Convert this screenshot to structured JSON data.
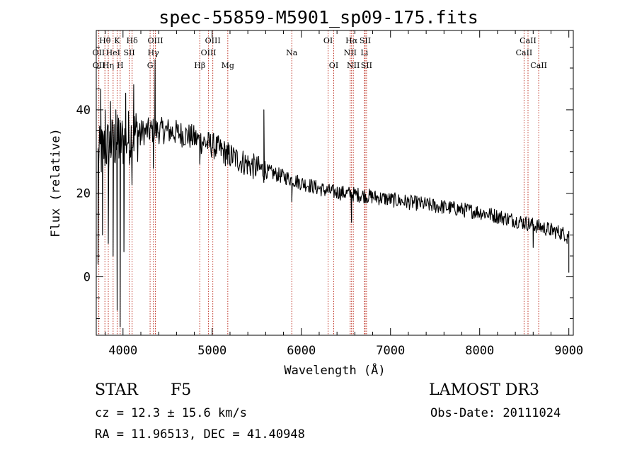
{
  "title": "spec-55859-M5901_sp09-175.fits",
  "info": {
    "object_type": "STAR",
    "subclass": "F5",
    "survey": "LAMOST DR3",
    "cz": "cz = 12.3 ± 15.6 km/s",
    "obs_date": "Obs-Date: 20111024",
    "ra_dec": "RA =  11.96513, DEC =  41.40948"
  },
  "colors": {
    "line_marker": "#c0392b",
    "spectrum": "#000000"
  },
  "chart_data": {
    "type": "line",
    "title": "spec-55859-M5901_sp09-175.fits",
    "xlabel": "Wavelength (Å)",
    "ylabel": "Flux (relative)",
    "xlim": [
      3700,
      9050
    ],
    "ylim": [
      -14,
      59
    ],
    "xticks": [
      4000,
      5000,
      6000,
      7000,
      8000,
      9000
    ],
    "yticks": [
      0,
      20,
      40
    ],
    "grid": false,
    "continuum": [
      [
        3700,
        28
      ],
      [
        3800,
        31
      ],
      [
        3900,
        32
      ],
      [
        4000,
        32.5
      ],
      [
        4100,
        34
      ],
      [
        4300,
        35
      ],
      [
        4500,
        35
      ],
      [
        4700,
        34
      ],
      [
        5000,
        31.5
      ],
      [
        5200,
        29
      ],
      [
        5500,
        26
      ],
      [
        5800,
        24
      ],
      [
        6000,
        22.5
      ],
      [
        6300,
        20.5
      ],
      [
        6700,
        19.5
      ],
      [
        7000,
        18.5
      ],
      [
        7500,
        17
      ],
      [
        8000,
        15.5
      ],
      [
        8500,
        13
      ],
      [
        9000,
        10
      ]
    ],
    "features": [
      {
        "x": 3720,
        "y": 3
      },
      {
        "x": 3750,
        "y": 45
      },
      {
        "x": 3770,
        "y": 10
      },
      {
        "x": 3800,
        "y": 40
      },
      {
        "x": 3835,
        "y": 8
      },
      {
        "x": 3860,
        "y": 42
      },
      {
        "x": 3889,
        "y": 5
      },
      {
        "x": 3920,
        "y": 40
      },
      {
        "x": 3934,
        "y": -8
      },
      {
        "x": 3950,
        "y": 38
      },
      {
        "x": 3968,
        "y": -12
      },
      {
        "x": 3990,
        "y": 37
      },
      {
        "x": 4010,
        "y": 6
      },
      {
        "x": 4030,
        "y": 44
      },
      {
        "x": 4060,
        "y": 32
      },
      {
        "x": 4101,
        "y": 22
      },
      {
        "x": 4120,
        "y": 46
      },
      {
        "x": 4300,
        "y": 33
      },
      {
        "x": 4340,
        "y": 26
      },
      {
        "x": 4360,
        "y": 52
      },
      {
        "x": 4380,
        "y": 35
      },
      {
        "x": 4861,
        "y": 27
      },
      {
        "x": 5175,
        "y": 27
      },
      {
        "x": 5580,
        "y": 40
      },
      {
        "x": 5590,
        "y": 25
      },
      {
        "x": 5893,
        "y": 18
      },
      {
        "x": 6563,
        "y": 13
      },
      {
        "x": 6600,
        "y": 20
      },
      {
        "x": 8600,
        "y": 7
      },
      {
        "x": 8800,
        "y": 10
      },
      {
        "x": 8980,
        "y": 8
      },
      {
        "x": 9000,
        "y": 1
      }
    ],
    "line_markers": [
      {
        "label": "OII",
        "x": 3727,
        "row": 2
      },
      {
        "label": "OII",
        "x": 3729,
        "row": 3
      },
      {
        "label": "Hθ",
        "x": 3797,
        "row": 1
      },
      {
        "label": "Hη",
        "x": 3835,
        "row": 3
      },
      {
        "label": "HeI",
        "x": 3889,
        "row": 2
      },
      {
        "label": "K",
        "x": 3934,
        "row": 1
      },
      {
        "label": "H",
        "x": 3968,
        "row": 3
      },
      {
        "label": "SII",
        "x": 4070,
        "row": 2
      },
      {
        "label": "Hδ",
        "x": 4102,
        "row": 1
      },
      {
        "label": "G",
        "x": 4304,
        "row": 3
      },
      {
        "label": "Hγ",
        "x": 4340,
        "row": 2
      },
      {
        "label": "OIII",
        "x": 4363,
        "row": 1
      },
      {
        "label": "Hβ",
        "x": 4861,
        "row": 3
      },
      {
        "label": "OIII",
        "x": 4959,
        "row": 2
      },
      {
        "label": "OIII",
        "x": 5007,
        "row": 1
      },
      {
        "label": "Mg",
        "x": 5175,
        "row": 3
      },
      {
        "label": "Na",
        "x": 5893,
        "row": 2
      },
      {
        "label": "OI",
        "x": 6300,
        "row": 1
      },
      {
        "label": "OI",
        "x": 6363,
        "row": 3
      },
      {
        "label": "NII",
        "x": 6548,
        "row": 2
      },
      {
        "label": "Hα",
        "x": 6563,
        "row": 1
      },
      {
        "label": "NII",
        "x": 6583,
        "row": 3
      },
      {
        "label": "Li",
        "x": 6707,
        "row": 2
      },
      {
        "label": "SII",
        "x": 6716,
        "row": 1
      },
      {
        "label": "SII",
        "x": 6731,
        "row": 3
      },
      {
        "label": "CaII",
        "x": 8498,
        "row": 2
      },
      {
        "label": "CaII",
        "x": 8542,
        "row": 1
      },
      {
        "label": "CaII",
        "x": 8662,
        "row": 3
      }
    ]
  }
}
